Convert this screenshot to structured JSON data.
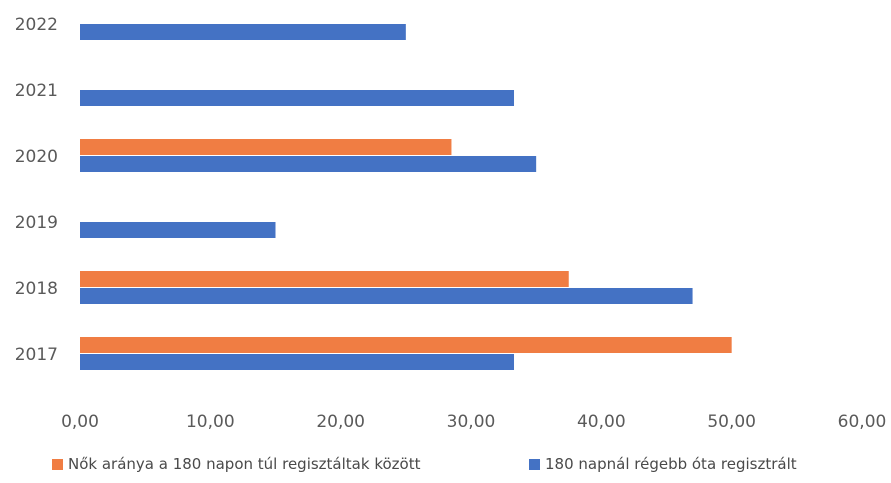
{
  "chart_data": {
    "type": "bar",
    "orientation": "horizontal",
    "categories": [
      "2017",
      "2018",
      "2019",
      "2020",
      "2021",
      "2022"
    ],
    "series": [
      {
        "name": "Nők aránya a 180 napon túl regisztáltak között",
        "color": "#f07d43",
        "values": [
          50.0,
          37.5,
          null,
          28.5,
          null,
          null
        ]
      },
      {
        "name": "180 napnál régebb óta regisztrált",
        "color": "#4472c4",
        "values": [
          33.3,
          47.0,
          15.0,
          35.0,
          33.3,
          25.0
        ]
      }
    ],
    "x_ticks": [
      "0,00",
      "10,00",
      "20,00",
      "30,00",
      "40,00",
      "50,00",
      "60,00"
    ],
    "xlim": [
      0,
      60
    ],
    "grid": false,
    "legend_position": "bottom"
  }
}
